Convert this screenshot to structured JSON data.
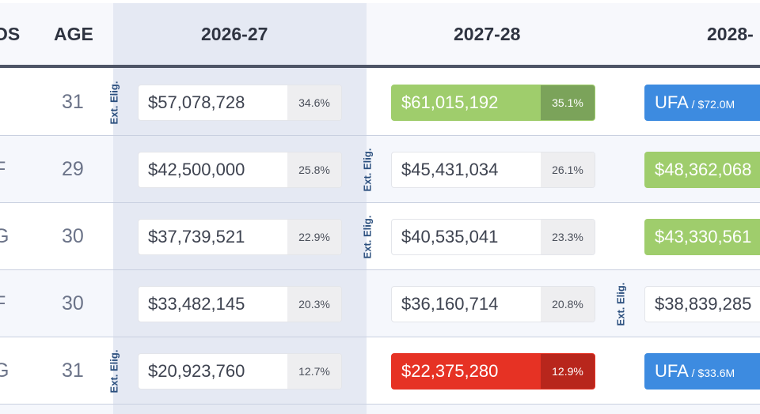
{
  "header": {
    "pos_label": "OS",
    "age_label": "AGE",
    "seasons": [
      "2026-27",
      "2027-28",
      "2028-"
    ]
  },
  "rows": [
    {
      "pos": "",
      "age": "31",
      "elig_label": "Ext. Elig.",
      "c1": {
        "amount": "$57,078,728",
        "pct": "34.6%"
      },
      "c2": {
        "amount": "$61,015,192",
        "pct": "35.1%"
      },
      "c3": {
        "amount": "UFA",
        "sub": " / $72.0M"
      }
    },
    {
      "pos": "F",
      "age": "29",
      "elig_label": "Ext. Elig.",
      "c1": {
        "amount": "$42,500,000",
        "pct": "25.8%"
      },
      "c2": {
        "amount": "$45,431,034",
        "pct": "26.1%"
      },
      "c3": {
        "amount": "$48,362,068"
      }
    },
    {
      "pos": "G",
      "age": "30",
      "elig_label": "Ext. Elig.",
      "c1": {
        "amount": "$37,739,521",
        "pct": "22.9%"
      },
      "c2": {
        "amount": "$40,535,041",
        "pct": "23.3%"
      },
      "c3": {
        "amount": "$43,330,561"
      }
    },
    {
      "pos": "F",
      "age": "30",
      "elig_label": "Ext. Elig.",
      "c1": {
        "amount": "$33,482,145",
        "pct": "20.3%"
      },
      "c2": {
        "amount": "$36,160,714",
        "pct": "20.8%"
      },
      "c3": {
        "amount": "$38,839,285"
      }
    },
    {
      "pos": "G",
      "age": "31",
      "elig_label": "Ext. Elig.",
      "c1": {
        "amount": "$20,923,760",
        "pct": "12.7%"
      },
      "c2": {
        "amount": "$22,375,280",
        "pct": "12.9%"
      },
      "c3": {
        "amount": "UFA",
        "sub": " / $33.6M"
      }
    }
  ],
  "colors": {
    "header_rule": "#4e5566",
    "highlight_column": "#e5e9f3",
    "raise_green": "#9fcd6c",
    "warning_red": "#e63224",
    "ufa_blue": "#3d8be0"
  }
}
